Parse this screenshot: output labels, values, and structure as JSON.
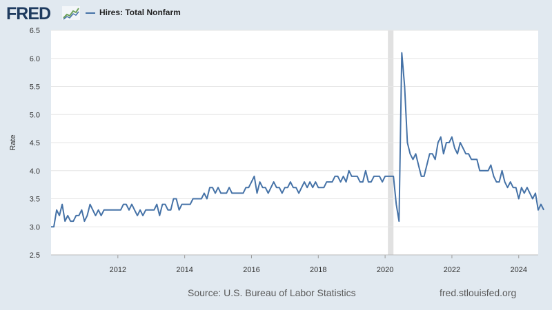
{
  "header": {
    "logo_text": "FRED",
    "logo_icon": "line-chart-icon",
    "legend_label": "Hires: Total Nonfarm"
  },
  "footer": {
    "source": "Source: U.S. Bureau of Labor Statistics",
    "site": "fred.stlouisfed.org"
  },
  "colors": {
    "background": "#e1e9f0",
    "plot_background": "#ffffff",
    "series": "#4572a7",
    "recession": "#e1e1e1",
    "grid": "#e6e6e6",
    "logo": "#1e3b5f"
  },
  "chart_data": {
    "type": "line",
    "title": "",
    "xlabel": "",
    "ylabel": "Rate",
    "x_start": "2010-01",
    "x_end": "2024-08",
    "x_frequency": "monthly",
    "xlim": [
      "2010-01",
      "2024-08"
    ],
    "ylim": [
      2.5,
      6.5
    ],
    "x_ticks": [
      "2012",
      "2014",
      "2016",
      "2018",
      "2020",
      "2022",
      "2024"
    ],
    "y_ticks": [
      "2.5",
      "3.0",
      "3.5",
      "4.0",
      "4.5",
      "5.0",
      "5.5",
      "6.0",
      "6.5"
    ],
    "grid": "horizontal",
    "recession_shading": [
      {
        "start": "2020-02",
        "end": "2020-04"
      }
    ],
    "series": [
      {
        "name": "Hires: Total Nonfarm",
        "values": [
          3.0,
          3.0,
          3.3,
          3.2,
          3.4,
          3.1,
          3.2,
          3.1,
          3.1,
          3.2,
          3.2,
          3.3,
          3.1,
          3.2,
          3.4,
          3.3,
          3.2,
          3.3,
          3.2,
          3.3,
          3.3,
          3.3,
          3.3,
          3.3,
          3.3,
          3.3,
          3.4,
          3.4,
          3.3,
          3.4,
          3.3,
          3.2,
          3.3,
          3.2,
          3.3,
          3.3,
          3.3,
          3.3,
          3.4,
          3.2,
          3.4,
          3.4,
          3.3,
          3.3,
          3.5,
          3.5,
          3.3,
          3.4,
          3.4,
          3.4,
          3.4,
          3.5,
          3.5,
          3.5,
          3.5,
          3.6,
          3.5,
          3.7,
          3.7,
          3.6,
          3.7,
          3.6,
          3.6,
          3.6,
          3.7,
          3.6,
          3.6,
          3.6,
          3.6,
          3.6,
          3.7,
          3.7,
          3.8,
          3.9,
          3.6,
          3.8,
          3.7,
          3.7,
          3.6,
          3.7,
          3.8,
          3.7,
          3.7,
          3.6,
          3.7,
          3.7,
          3.8,
          3.7,
          3.7,
          3.6,
          3.7,
          3.8,
          3.7,
          3.8,
          3.7,
          3.8,
          3.7,
          3.7,
          3.7,
          3.8,
          3.8,
          3.8,
          3.9,
          3.9,
          3.8,
          3.9,
          3.8,
          4.0,
          3.9,
          3.9,
          3.9,
          3.8,
          3.8,
          4.0,
          3.8,
          3.8,
          3.9,
          3.9,
          3.9,
          3.8,
          3.9,
          3.9,
          3.9,
          3.9,
          3.4,
          3.1,
          6.1,
          5.5,
          4.5,
          4.3,
          4.2,
          4.3,
          4.1,
          3.9,
          3.9,
          4.1,
          4.3,
          4.3,
          4.2,
          4.5,
          4.6,
          4.3,
          4.5,
          4.5,
          4.6,
          4.4,
          4.3,
          4.5,
          4.4,
          4.3,
          4.3,
          4.2,
          4.2,
          4.2,
          4.0,
          4.0,
          4.0,
          4.0,
          4.1,
          3.9,
          3.8,
          3.8,
          4.0,
          3.8,
          3.7,
          3.8,
          3.7,
          3.7,
          3.5,
          3.7,
          3.6,
          3.7,
          3.6,
          3.5,
          3.6,
          3.3,
          3.4,
          3.3
        ]
      }
    ]
  }
}
